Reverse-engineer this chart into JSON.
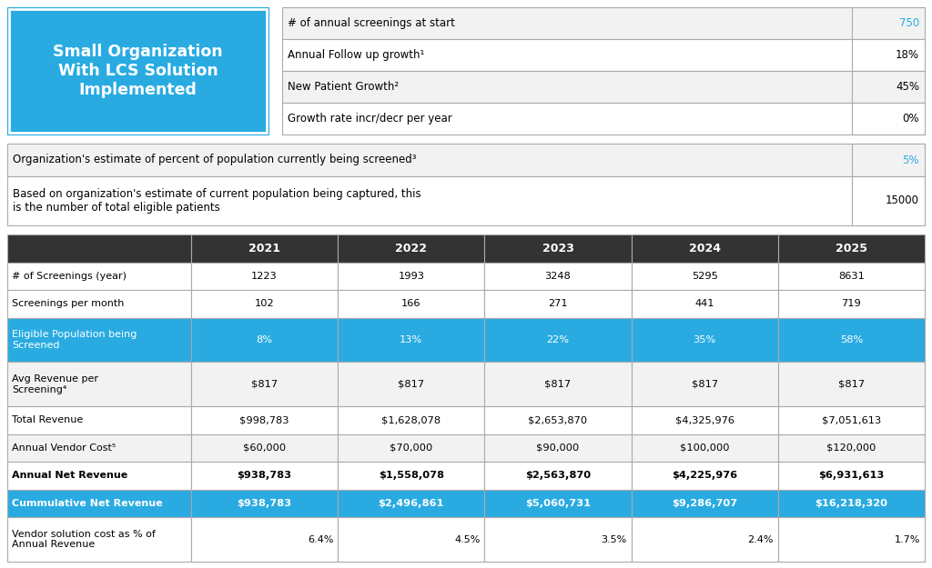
{
  "title_box": {
    "text": "Small Organization\nWith LCS Solution\nImplemented",
    "bg_color": "#29ABE2",
    "text_color": "#FFFFFF",
    "font_size": 12.5
  },
  "top_right_table": {
    "rows": [
      [
        "# of annual screenings at start",
        "750"
      ],
      [
        "Annual Follow up growth¹",
        "18%"
      ],
      [
        "New Patient Growth²",
        "45%"
      ],
      [
        "Growth rate incr/decr per year",
        "0%"
      ]
    ],
    "value_colors": [
      "#29ABE2",
      "#000000",
      "#000000",
      "#000000"
    ]
  },
  "mid_table": {
    "rows": [
      [
        "Organization's estimate of percent of population currently being screened³",
        "5%"
      ],
      [
        "Based on organization's estimate of current population being captured, this\nis the number of total eligible patients",
        "15000"
      ]
    ],
    "value_colors": [
      "#29ABE2",
      "#000000"
    ]
  },
  "main_table": {
    "header": [
      "",
      "2021",
      "2022",
      "2023",
      "2024",
      "2025"
    ],
    "header_bg": "#333333",
    "header_text_color": "#FFFFFF",
    "rows": [
      {
        "label": "# of Screenings (year)",
        "values": [
          "1223",
          "1993",
          "3248",
          "5295",
          "8631"
        ],
        "bg": "#FFFFFF",
        "text_color": "#000000",
        "bold": false,
        "two_line": false
      },
      {
        "label": "Screenings per month",
        "values": [
          "102",
          "166",
          "271",
          "441",
          "719"
        ],
        "bg": "#FFFFFF",
        "text_color": "#000000",
        "bold": false,
        "two_line": false
      },
      {
        "label": "Eligible Population being\nScreened",
        "values": [
          "8%",
          "13%",
          "22%",
          "35%",
          "58%"
        ],
        "bg": "#29ABE2",
        "text_color": "#FFFFFF",
        "bold": false,
        "two_line": true
      },
      {
        "label": "Avg Revenue per\nScreening⁴",
        "values": [
          "$817",
          "$817",
          "$817",
          "$817",
          "$817"
        ],
        "bg": "#F2F2F2",
        "text_color": "#000000",
        "bold": false,
        "two_line": true
      },
      {
        "label": "Total Revenue",
        "values": [
          "$998,783",
          "$1,628,078",
          "$2,653,870",
          "$4,325,976",
          "$7,051,613"
        ],
        "bg": "#FFFFFF",
        "text_color": "#000000",
        "bold": false,
        "two_line": false
      },
      {
        "label": "Annual Vendor Cost⁵",
        "values": [
          "$60,000",
          "$70,000",
          "$90,000",
          "$100,000",
          "$120,000"
        ],
        "bg": "#F2F2F2",
        "text_color": "#000000",
        "bold": false,
        "two_line": false
      },
      {
        "label": "Annual Net Revenue",
        "values": [
          "$938,783",
          "$1,558,078",
          "$2,563,870",
          "$4,225,976",
          "$6,931,613"
        ],
        "bg": "#FFFFFF",
        "text_color": "#000000",
        "bold": true,
        "two_line": false
      },
      {
        "label": "Cummulative Net Revenue",
        "values": [
          "$938,783",
          "$2,496,861",
          "$5,060,731",
          "$9,286,707",
          "$16,218,320"
        ],
        "bg": "#29ABE2",
        "text_color": "#FFFFFF",
        "bold": true,
        "two_line": false
      },
      {
        "label": "Vendor solution cost as % of\nAnnual Revenue",
        "values": [
          "6.4%",
          "4.5%",
          "3.5%",
          "2.4%",
          "1.7%"
        ],
        "bg": "#FFFFFF",
        "text_color": "#000000",
        "bold": false,
        "two_line": true,
        "val_align": "right"
      }
    ]
  },
  "border_color": "#AAAAAA",
  "light_bg": "#F2F2F2",
  "bg_color": "#FFFFFF"
}
